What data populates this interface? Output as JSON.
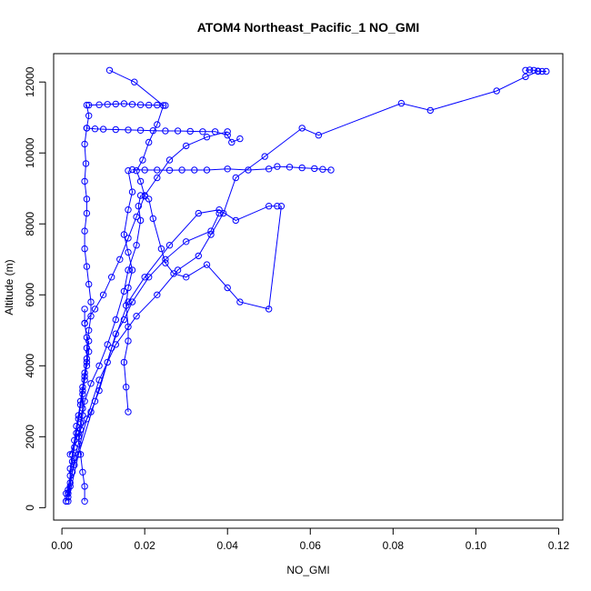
{
  "chart_data": {
    "type": "line",
    "title": "ATOM4 Northeast_Pacific_1 NO_GMI",
    "xlabel": "NO_GMI",
    "ylabel": "Altitude (m)",
    "xlim": [
      -0.002,
      0.121
    ],
    "ylim": [
      -350,
      12800
    ],
    "xticks": [
      0.0,
      0.02,
      0.04,
      0.06,
      0.08,
      0.1,
      0.12
    ],
    "xtick_labels": [
      "0.00",
      "0.02",
      "0.04",
      "0.06",
      "0.08",
      "0.10",
      "0.12"
    ],
    "yticks": [
      0,
      2000,
      4000,
      6000,
      8000,
      10000,
      12000
    ],
    "ytick_labels": [
      "0",
      "2000",
      "4000",
      "6000",
      "8000",
      "10000",
      "12000"
    ],
    "grid": false,
    "color": "#0000ff",
    "series": [
      {
        "values": [
          [
            0.001,
            180
          ],
          [
            0.0015,
            500
          ],
          [
            0.002,
            900
          ],
          [
            0.0025,
            1300
          ],
          [
            0.003,
            1700
          ],
          [
            0.0035,
            2100
          ],
          [
            0.004,
            2500
          ],
          [
            0.0045,
            2900
          ],
          [
            0.005,
            3300
          ],
          [
            0.0055,
            3700
          ],
          [
            0.006,
            4100
          ],
          [
            0.006,
            4500
          ],
          [
            0.0065,
            5000
          ],
          [
            0.007,
            5400
          ],
          [
            0.007,
            5800
          ],
          [
            0.0065,
            6300
          ],
          [
            0.006,
            6800
          ],
          [
            0.0055,
            7300
          ],
          [
            0.0055,
            7800
          ],
          [
            0.006,
            8300
          ],
          [
            0.006,
            8700
          ],
          [
            0.0055,
            9200
          ],
          [
            0.0058,
            9700
          ],
          [
            0.0055,
            10250
          ],
          [
            0.006,
            10700
          ],
          [
            0.0065,
            11050
          ],
          [
            0.006,
            11350
          ]
        ]
      },
      {
        "values": [
          [
            0.0055,
            180
          ],
          [
            0.0055,
            600
          ],
          [
            0.005,
            1000
          ],
          [
            0.0045,
            1500
          ],
          [
            0.004,
            2000
          ],
          [
            0.0045,
            2400
          ],
          [
            0.005,
            2800
          ],
          [
            0.005,
            3200
          ],
          [
            0.0055,
            3600
          ],
          [
            0.006,
            4000
          ],
          [
            0.0065,
            4400
          ],
          [
            0.006,
            4800
          ],
          [
            0.0055,
            5200
          ],
          [
            0.0055,
            5600
          ]
        ]
      },
      {
        "values": [
          [
            0.001,
            180
          ],
          [
            0.0015,
            400
          ],
          [
            0.002,
            700
          ],
          [
            0.002,
            1100
          ],
          [
            0.0025,
            1500
          ],
          [
            0.003,
            1900
          ],
          [
            0.0035,
            2300
          ],
          [
            0.004,
            2600
          ],
          [
            0.0045,
            3000
          ],
          [
            0.005,
            3400
          ],
          [
            0.0055,
            3800
          ],
          [
            0.006,
            4200
          ],
          [
            0.0065,
            4700
          ]
        ]
      },
      {
        "values": [
          [
            0.0015,
            300
          ],
          [
            0.002,
            600
          ],
          [
            0.0025,
            1000
          ],
          [
            0.003,
            1400
          ],
          [
            0.004,
            1800
          ],
          [
            0.0045,
            2200
          ],
          [
            0.005,
            2600
          ],
          [
            0.0055,
            3000
          ],
          [
            0.007,
            3500
          ],
          [
            0.009,
            4000
          ],
          [
            0.011,
            4600
          ],
          [
            0.013,
            5300
          ],
          [
            0.015,
            6100
          ],
          [
            0.016,
            6700
          ],
          [
            0.018,
            7400
          ],
          [
            0.019,
            8100
          ],
          [
            0.0185,
            8500
          ],
          [
            0.019,
            8800
          ]
        ]
      },
      {
        "values": [
          [
            0.016,
            2700
          ],
          [
            0.0155,
            3400
          ],
          [
            0.015,
            4100
          ],
          [
            0.016,
            4700
          ],
          [
            0.016,
            5100
          ],
          [
            0.0155,
            5700
          ],
          [
            0.016,
            6200
          ],
          [
            0.017,
            6700
          ],
          [
            0.016,
            7200
          ],
          [
            0.015,
            7700
          ],
          [
            0.016,
            8400
          ],
          [
            0.017,
            8900
          ],
          [
            0.016,
            9500
          ]
        ]
      },
      {
        "values": [
          [
            0.0115,
            12330
          ],
          [
            0.0175,
            12000
          ],
          [
            0.0245,
            11340
          ],
          [
            0.023,
            10800
          ],
          [
            0.021,
            10300
          ],
          [
            0.0195,
            9800
          ],
          [
            0.018,
            9500
          ],
          [
            0.019,
            9200
          ],
          [
            0.02,
            8780
          ],
          [
            0.021,
            8700
          ],
          [
            0.022,
            8150
          ],
          [
            0.024,
            7300
          ],
          [
            0.025,
            6900
          ],
          [
            0.027,
            6600
          ],
          [
            0.03,
            6500
          ],
          [
            0.035,
            6850
          ],
          [
            0.04,
            6200
          ],
          [
            0.043,
            5800
          ],
          [
            0.05,
            5600
          ],
          [
            0.053,
            8500
          ]
        ]
      },
      {
        "values": [
          [
            0.006,
            10700
          ],
          [
            0.008,
            10680
          ],
          [
            0.01,
            10670
          ],
          [
            0.013,
            10660
          ],
          [
            0.016,
            10650
          ],
          [
            0.019,
            10640
          ],
          [
            0.022,
            10630
          ],
          [
            0.025,
            10620
          ],
          [
            0.028,
            10620
          ],
          [
            0.031,
            10610
          ],
          [
            0.034,
            10600
          ],
          [
            0.037,
            10600
          ],
          [
            0.04,
            10500
          ],
          [
            0.041,
            10300
          ],
          [
            0.043,
            10400
          ]
        ]
      },
      {
        "values": [
          [
            0.017,
            9530
          ],
          [
            0.02,
            9520
          ],
          [
            0.023,
            9520
          ],
          [
            0.026,
            9510
          ],
          [
            0.029,
            9520
          ],
          [
            0.032,
            9520
          ],
          [
            0.035,
            9520
          ],
          [
            0.04,
            9550
          ],
          [
            0.045,
            9520
          ],
          [
            0.05,
            9550
          ],
          [
            0.052,
            9620
          ],
          [
            0.055,
            9600
          ],
          [
            0.058,
            9580
          ],
          [
            0.061,
            9560
          ],
          [
            0.063,
            9540
          ],
          [
            0.065,
            9520
          ]
        ]
      },
      {
        "values": [
          [
            0.0065,
            11350
          ],
          [
            0.009,
            11360
          ],
          [
            0.011,
            11370
          ],
          [
            0.013,
            11380
          ],
          [
            0.015,
            11390
          ],
          [
            0.017,
            11370
          ],
          [
            0.019,
            11360
          ],
          [
            0.021,
            11350
          ],
          [
            0.023,
            11350
          ],
          [
            0.025,
            11340
          ]
        ]
      },
      {
        "values": [
          [
            0.0015,
            180
          ],
          [
            0.004,
            1500
          ],
          [
            0.008,
            3000
          ],
          [
            0.012,
            4500
          ],
          [
            0.016,
            5800
          ],
          [
            0.02,
            6500
          ],
          [
            0.026,
            7400
          ],
          [
            0.033,
            8300
          ],
          [
            0.038,
            8400
          ],
          [
            0.042,
            8100
          ],
          [
            0.05,
            8500
          ],
          [
            0.052,
            8500
          ]
        ]
      },
      {
        "values": [
          [
            0.001,
            400
          ],
          [
            0.003,
            1200
          ],
          [
            0.006,
            2500
          ],
          [
            0.009,
            3600
          ],
          [
            0.013,
            4600
          ],
          [
            0.018,
            5400
          ],
          [
            0.023,
            6000
          ],
          [
            0.028,
            6700
          ],
          [
            0.033,
            7100
          ],
          [
            0.036,
            7700
          ],
          [
            0.039,
            8300
          ],
          [
            0.042,
            9300
          ],
          [
            0.049,
            9900
          ],
          [
            0.058,
            10700
          ],
          [
            0.062,
            10500
          ],
          [
            0.082,
            11400
          ],
          [
            0.089,
            11200
          ],
          [
            0.105,
            11750
          ],
          [
            0.112,
            12150
          ],
          [
            0.115,
            12300
          ]
        ]
      },
      {
        "values": [
          [
            0.112,
            12330
          ],
          [
            0.113,
            12340
          ],
          [
            0.114,
            12330
          ],
          [
            0.115,
            12310
          ],
          [
            0.116,
            12300
          ],
          [
            0.117,
            12300
          ]
        ]
      },
      {
        "values": [
          [
            0.0055,
            5200
          ],
          [
            0.008,
            5600
          ],
          [
            0.01,
            6000
          ],
          [
            0.012,
            6500
          ],
          [
            0.014,
            7000
          ],
          [
            0.016,
            7600
          ],
          [
            0.018,
            8200
          ],
          [
            0.02,
            8800
          ],
          [
            0.023,
            9300
          ],
          [
            0.026,
            9800
          ],
          [
            0.03,
            10200
          ],
          [
            0.035,
            10450
          ],
          [
            0.04,
            10600
          ]
        ]
      },
      {
        "values": [
          [
            0.002,
            1500
          ],
          [
            0.004,
            2100
          ],
          [
            0.007,
            2700
          ],
          [
            0.009,
            3300
          ],
          [
            0.011,
            4100
          ],
          [
            0.013,
            4900
          ],
          [
            0.015,
            5300
          ],
          [
            0.017,
            5800
          ],
          [
            0.021,
            6500
          ],
          [
            0.025,
            7000
          ],
          [
            0.03,
            7500
          ],
          [
            0.036,
            7800
          ],
          [
            0.038,
            8300
          ]
        ]
      }
    ]
  }
}
